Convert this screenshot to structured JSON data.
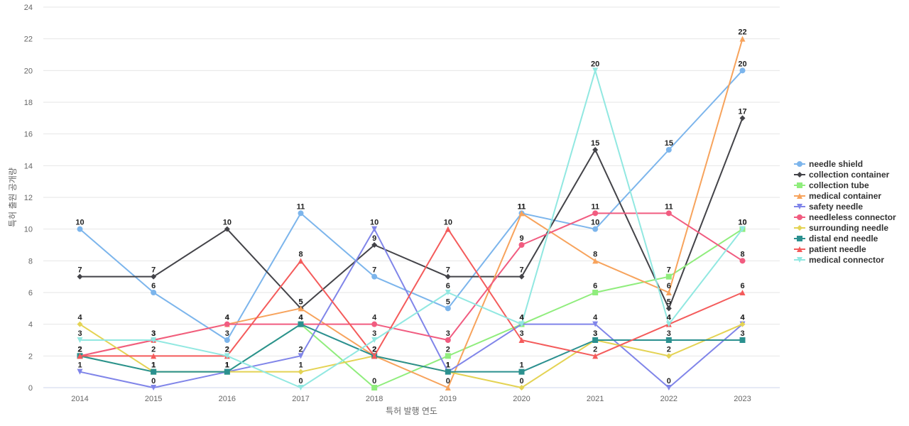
{
  "chart_data": {
    "type": "line",
    "title": "",
    "xlabel": "특허 발행 연도",
    "ylabel": "특허 출원 공개량",
    "categories": [
      "2014",
      "2015",
      "2016",
      "2017",
      "2018",
      "2019",
      "2020",
      "2021",
      "2022",
      "2023"
    ],
    "yticks": [
      "0",
      "2",
      "4",
      "6",
      "8",
      "10",
      "12",
      "14",
      "16",
      "18",
      "20",
      "22",
      "24"
    ],
    "ylim": [
      0,
      24
    ],
    "grid": true,
    "legend_position": "right",
    "series": [
      {
        "name": "needle shield",
        "color": "#7cb5ec",
        "marker": "circle",
        "values": [
          10,
          6,
          3,
          11,
          7,
          5,
          11,
          10,
          15,
          20
        ]
      },
      {
        "name": "collection container",
        "color": "#434348",
        "marker": "diamond",
        "values": [
          7,
          7,
          10,
          5,
          9,
          7,
          7,
          15,
          5,
          17
        ]
      },
      {
        "name": "collection tube",
        "color": "#90ed7d",
        "marker": "square",
        "values": [
          2,
          1,
          1,
          4,
          0,
          2,
          4,
          6,
          7,
          10
        ]
      },
      {
        "name": "medical container",
        "color": "#f7a35c",
        "marker": "triangle",
        "values": [
          2,
          3,
          4,
          5,
          2,
          0,
          11,
          8,
          6,
          22
        ]
      },
      {
        "name": "safety needle",
        "color": "#8085e9",
        "marker": "triangle-down",
        "values": [
          1,
          0,
          1,
          2,
          10,
          1,
          4,
          4,
          0,
          4
        ]
      },
      {
        "name": "needleless connector",
        "color": "#f15c80",
        "marker": "circle",
        "values": [
          2,
          3,
          4,
          4,
          4,
          3,
          9,
          11,
          11,
          8
        ]
      },
      {
        "name": "surrounding needle",
        "color": "#e4d354",
        "marker": "diamond",
        "values": [
          4,
          1,
          1,
          1,
          2,
          1,
          0,
          3,
          2,
          4
        ]
      },
      {
        "name": "distal end needle",
        "color": "#2b908f",
        "marker": "square",
        "values": [
          2,
          1,
          1,
          4,
          2,
          1,
          1,
          3,
          3,
          3
        ]
      },
      {
        "name": "patient needle",
        "color": "#f45b5b",
        "marker": "triangle",
        "values": [
          2,
          2,
          2,
          8,
          2,
          10,
          3,
          2,
          4,
          6
        ]
      },
      {
        "name": "medical connector",
        "color": "#91e8e1",
        "marker": "triangle-down",
        "values": [
          3,
          3,
          2,
          0,
          3,
          6,
          4,
          20,
          4,
          10
        ]
      }
    ]
  }
}
